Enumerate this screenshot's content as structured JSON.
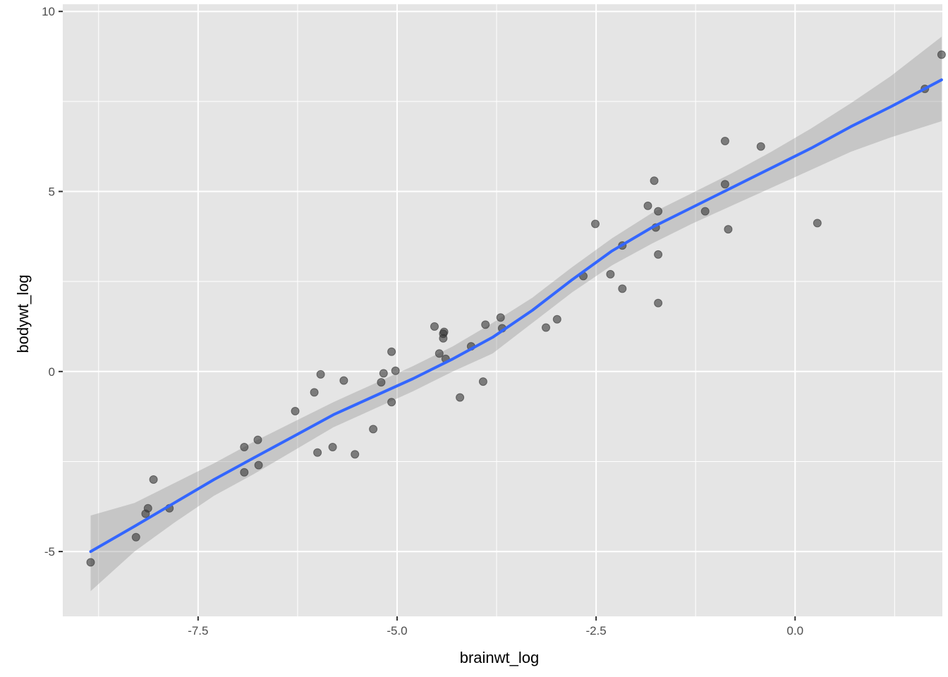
{
  "chart_data": {
    "type": "scatter",
    "title": "",
    "xlabel": "brainwt_log",
    "ylabel": "bodywt_log",
    "xlim": [
      -9.2,
      1.85
    ],
    "ylim": [
      -6.8,
      10.2
    ],
    "x_ticks": [
      -7.5,
      -5.0,
      -2.5,
      0.0
    ],
    "x_tick_labels": [
      "-7.5",
      "-5.0",
      "-2.5",
      "0.0"
    ],
    "y_ticks": [
      -5,
      0,
      5,
      10
    ],
    "y_tick_labels": [
      "-5",
      "0",
      "5",
      "10"
    ],
    "grid": true,
    "colors": {
      "panel": "#e5e5e5",
      "grid": "#ffffff",
      "points": "#333333",
      "line": "#3366ff",
      "ribbon": "#999999"
    },
    "points": {
      "x": [
        -8.85,
        -8.28,
        -8.16,
        -8.13,
        -8.06,
        -7.86,
        -6.92,
        -6.92,
        -6.75,
        -6.74,
        -6.28,
        -6.04,
        -6.0,
        -5.96,
        -5.81,
        -5.67,
        -5.53,
        -5.3,
        -5.2,
        -5.17,
        -5.07,
        -5.07,
        -5.02,
        -4.53,
        -4.47,
        -4.42,
        -4.42,
        -4.41,
        -4.39,
        -4.21,
        -4.07,
        -3.92,
        -3.89,
        -3.7,
        -3.68,
        -3.13,
        -2.99,
        -2.66,
        -2.51,
        -2.32,
        -2.17,
        -2.17,
        -1.85,
        -1.77,
        -1.75,
        -1.72,
        -1.72,
        -1.72,
        -1.13,
        -0.88,
        -0.88,
        -0.84,
        -0.43,
        0.28,
        1.63,
        1.84
      ],
      "y": [
        -5.3,
        -4.6,
        -3.95,
        -3.8,
        -3.0,
        -3.8,
        -2.1,
        -2.8,
        -1.9,
        -2.6,
        -1.1,
        -0.58,
        -2.25,
        -0.08,
        -2.1,
        -0.25,
        -2.3,
        -1.6,
        -0.3,
        -0.05,
        0.55,
        -0.85,
        0.02,
        1.25,
        0.5,
        0.92,
        1.05,
        1.1,
        0.35,
        -0.72,
        0.7,
        -0.28,
        1.3,
        1.5,
        1.2,
        1.22,
        1.45,
        2.65,
        4.1,
        2.7,
        3.5,
        2.3,
        4.6,
        5.3,
        4.0,
        4.45,
        3.25,
        1.9,
        4.45,
        6.4,
        5.2,
        3.95,
        6.25,
        4.12,
        7.85,
        8.8
      ]
    },
    "smooth": {
      "method": "loess",
      "x": [
        -8.85,
        -8.3,
        -7.8,
        -7.3,
        -6.8,
        -6.3,
        -5.8,
        -5.3,
        -4.8,
        -4.3,
        -3.8,
        -3.3,
        -2.8,
        -2.3,
        -1.8,
        -1.3,
        -0.8,
        -0.3,
        0.2,
        0.7,
        1.2,
        1.84
      ],
      "y": [
        -5.0,
        -4.3,
        -3.65,
        -3.0,
        -2.4,
        -1.8,
        -1.2,
        -0.7,
        -0.2,
        0.35,
        0.95,
        1.7,
        2.55,
        3.35,
        4.0,
        4.55,
        5.1,
        5.65,
        6.2,
        6.8,
        7.35,
        8.1
      ],
      "upper": [
        -4.0,
        -3.65,
        -3.1,
        -2.55,
        -1.95,
        -1.4,
        -0.85,
        -0.35,
        0.15,
        0.7,
        1.35,
        2.05,
        2.9,
        3.7,
        4.4,
        4.95,
        5.5,
        6.1,
        6.75,
        7.45,
        8.2,
        9.3
      ],
      "lower": [
        -6.1,
        -5.0,
        -4.2,
        -3.45,
        -2.85,
        -2.2,
        -1.55,
        -1.05,
        -0.55,
        0.0,
        0.5,
        1.35,
        2.2,
        2.95,
        3.55,
        4.1,
        4.6,
        5.1,
        5.6,
        6.1,
        6.5,
        6.95
      ]
    }
  }
}
